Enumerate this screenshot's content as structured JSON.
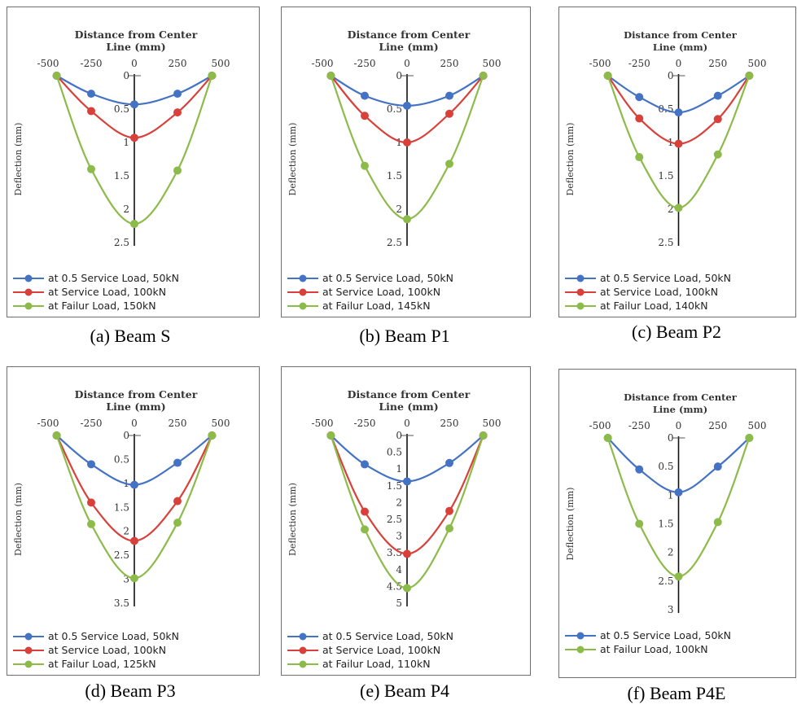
{
  "colors": {
    "blue": "#4472c4",
    "red": "#d9403a",
    "green": "#8dbb4a"
  },
  "chart_data": [
    {
      "type": "line",
      "caption": "(a) Beam S",
      "title": "Distance from Center Line (mm)",
      "xlabel": "Distance from Center Line (mm)",
      "ylabel": "Deflection (mm)",
      "xlim": [
        -500,
        500
      ],
      "ylim": [
        0,
        2.5
      ],
      "y_inverted": true,
      "xticks": [
        "-500",
        "-250",
        "0",
        "250",
        "500"
      ],
      "yticks": [
        "0",
        "0.5",
        "1",
        "1.5",
        "2",
        "2.5"
      ],
      "x": [
        -450,
        -250,
        0,
        250,
        450
      ],
      "series": [
        {
          "name": "at 0.5 Service Load, 50kN",
          "color": "blue",
          "values": [
            0,
            0.27,
            0.43,
            0.27,
            0
          ]
        },
        {
          "name": "at Service Load, 100kN",
          "color": "red",
          "values": [
            0,
            0.53,
            0.93,
            0.55,
            0
          ]
        },
        {
          "name": "at Failur Load, 150kN",
          "color": "green",
          "values": [
            0,
            1.4,
            2.22,
            1.42,
            0
          ]
        }
      ]
    },
    {
      "type": "line",
      "caption": "(b) Beam P1",
      "title": "Distance from Center Line (mm)",
      "xlabel": "Distance from Center Line (mm)",
      "ylabel": "Deflection (mm)",
      "xlim": [
        -500,
        500
      ],
      "ylim": [
        0,
        2.5
      ],
      "y_inverted": true,
      "xticks": [
        "-500",
        "-250",
        "0",
        "250",
        "500"
      ],
      "yticks": [
        "0",
        "0.5",
        "1",
        "1.5",
        "2",
        "2.5"
      ],
      "x": [
        -450,
        -250,
        0,
        250,
        450
      ],
      "series": [
        {
          "name": "at 0.5 Service Load, 50kN",
          "color": "blue",
          "values": [
            0,
            0.3,
            0.45,
            0.3,
            0
          ]
        },
        {
          "name": "at Service Load, 100kN",
          "color": "red",
          "values": [
            0,
            0.6,
            1.0,
            0.57,
            0
          ]
        },
        {
          "name": "at Failur Load, 145kN",
          "color": "green",
          "values": [
            0,
            1.35,
            2.15,
            1.32,
            0
          ]
        }
      ]
    },
    {
      "type": "line",
      "caption": "(c) Beam P2",
      "title": "Distance from Center Line (mm)",
      "xlabel": "Distance from Center Line (mm)",
      "ylabel": "Deflection (mm)",
      "xlim": [
        -500,
        500
      ],
      "ylim": [
        0,
        2.5
      ],
      "y_inverted": true,
      "xticks": [
        "-500",
        "-250",
        "0",
        "250",
        "500"
      ],
      "yticks": [
        "0",
        "0.5",
        "1",
        "1.5",
        "2",
        "2.5"
      ],
      "x": [
        -450,
        -250,
        0,
        250,
        450
      ],
      "series": [
        {
          "name": "at 0.5 Service Load, 50kN",
          "color": "blue",
          "values": [
            0,
            0.32,
            0.55,
            0.3,
            0
          ]
        },
        {
          "name": "at Service Load, 100kN",
          "color": "red",
          "values": [
            0,
            0.64,
            1.02,
            0.65,
            0
          ]
        },
        {
          "name": "at Failur Load, 140kN",
          "color": "green",
          "values": [
            0,
            1.22,
            1.98,
            1.18,
            0
          ]
        }
      ]
    },
    {
      "type": "line",
      "caption": "(d) Beam P3",
      "title": "Distance from Center Line (mm)",
      "xlabel": "Distance from Center Line (mm)",
      "ylabel": "Deflection (mm)",
      "xlim": [
        -500,
        500
      ],
      "ylim": [
        0,
        3.5
      ],
      "y_inverted": true,
      "xticks": [
        "-500",
        "-250",
        "0",
        "250",
        "500"
      ],
      "yticks": [
        "0",
        "0.5",
        "1",
        "1.5",
        "2",
        "2.5",
        "3",
        "3.5"
      ],
      "x": [
        -450,
        -250,
        0,
        250,
        450
      ],
      "series": [
        {
          "name": "at 0.5 Service Load, 50kN",
          "color": "blue",
          "values": [
            0,
            0.6,
            1.03,
            0.57,
            0
          ]
        },
        {
          "name": "at Service Load, 100kN",
          "color": "red",
          "values": [
            0,
            1.4,
            2.2,
            1.37,
            0
          ]
        },
        {
          "name": "at Failur Load, 125kN",
          "color": "green",
          "values": [
            0,
            1.85,
            2.98,
            1.82,
            0
          ]
        }
      ]
    },
    {
      "type": "line",
      "caption": "(e) Beam P4",
      "title": "Distance from Center Line (mm)",
      "xlabel": "Distance from Center Line (mm)",
      "ylabel": "Deflection (mm)",
      "xlim": [
        -500,
        500
      ],
      "ylim": [
        0,
        5
      ],
      "y_inverted": true,
      "xticks": [
        "-500",
        "-250",
        "0",
        "250",
        "500"
      ],
      "yticks": [
        "0",
        "0.5",
        "1",
        "1.5",
        "2",
        "2.5",
        "3",
        "3.5",
        "4",
        "4.5",
        "5"
      ],
      "x": [
        -450,
        -250,
        0,
        250,
        450
      ],
      "series": [
        {
          "name": "at 0.5 Service Load, 50kN",
          "color": "blue",
          "values": [
            0,
            0.86,
            1.37,
            0.82,
            0
          ]
        },
        {
          "name": "at Service Load, 100kN",
          "color": "red",
          "values": [
            0,
            2.27,
            3.53,
            2.25,
            0
          ]
        },
        {
          "name": "at Failur Load, 110kN",
          "color": "green",
          "values": [
            0,
            2.8,
            4.55,
            2.77,
            0
          ]
        }
      ]
    },
    {
      "type": "line",
      "caption": "(f) Beam P4E",
      "title": "Distance from Center Line (mm)",
      "xlabel": "Distance from Center Line (mm)",
      "ylabel": "Deflection (mm)",
      "xlim": [
        -500,
        500
      ],
      "ylim": [
        0,
        3
      ],
      "y_inverted": true,
      "xticks": [
        "-500",
        "-250",
        "0",
        "250",
        "500"
      ],
      "yticks": [
        "0",
        "0.5",
        "1",
        "1.5",
        "2",
        "2.5",
        "3"
      ],
      "x": [
        -450,
        -250,
        0,
        250,
        450
      ],
      "series": [
        {
          "name": "at 0.5 Service Load, 50kN",
          "color": "blue",
          "values": [
            0,
            0.55,
            0.95,
            0.5,
            0
          ]
        },
        {
          "name": "at Failur Load, 100kN",
          "color": "green",
          "values": [
            0,
            1.5,
            2.42,
            1.47,
            0
          ]
        }
      ]
    }
  ]
}
